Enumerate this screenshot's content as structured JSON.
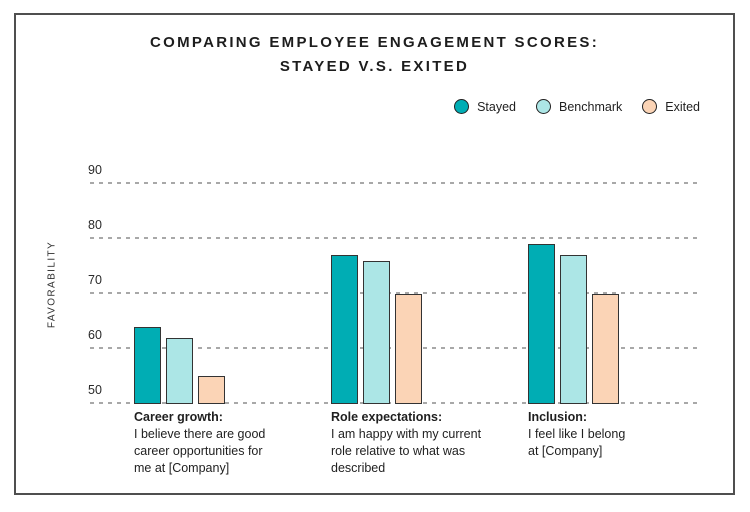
{
  "header": {
    "title_line1": "COMPARING EMPLOYEE ENGAGEMENT SCORES:",
    "title_line2": "STAYED V.S. EXITED"
  },
  "chart_data": {
    "type": "bar",
    "title": "Comparing employee engagement scores: Stayed v.s. Exited",
    "ylabel": "FAVORABILITY",
    "baseline": 50,
    "ylim": [
      50,
      95
    ],
    "yticks": [
      90,
      80,
      70,
      60,
      50
    ],
    "grid": "horizontal-dashed",
    "legend_position": "top-right",
    "categories": [
      {
        "label": "Career growth:",
        "question": "I believe there are good\ncareer opportunities for\nme at [Company]"
      },
      {
        "label": "Role expectations:",
        "question": "I am happy with my current\nrole relative to what was\ndescribed"
      },
      {
        "label": "Inclusion:",
        "question": "I feel like I belong\nat [Company]"
      }
    ],
    "series": [
      {
        "name": "Stayed",
        "color": "#00ADB4",
        "values": [
          64,
          77,
          79
        ]
      },
      {
        "name": "Benchmark",
        "color": "#ACE6E6",
        "values": [
          62,
          76,
          77
        ]
      },
      {
        "name": "Exited",
        "color": "#FBD4B6",
        "values": [
          55,
          70,
          70
        ]
      }
    ],
    "colors": {
      "bar_outline": "#333333",
      "gridline": "#a8a8a8",
      "frame_border": "#4f4f4f",
      "text": "#1d1d1d"
    }
  }
}
